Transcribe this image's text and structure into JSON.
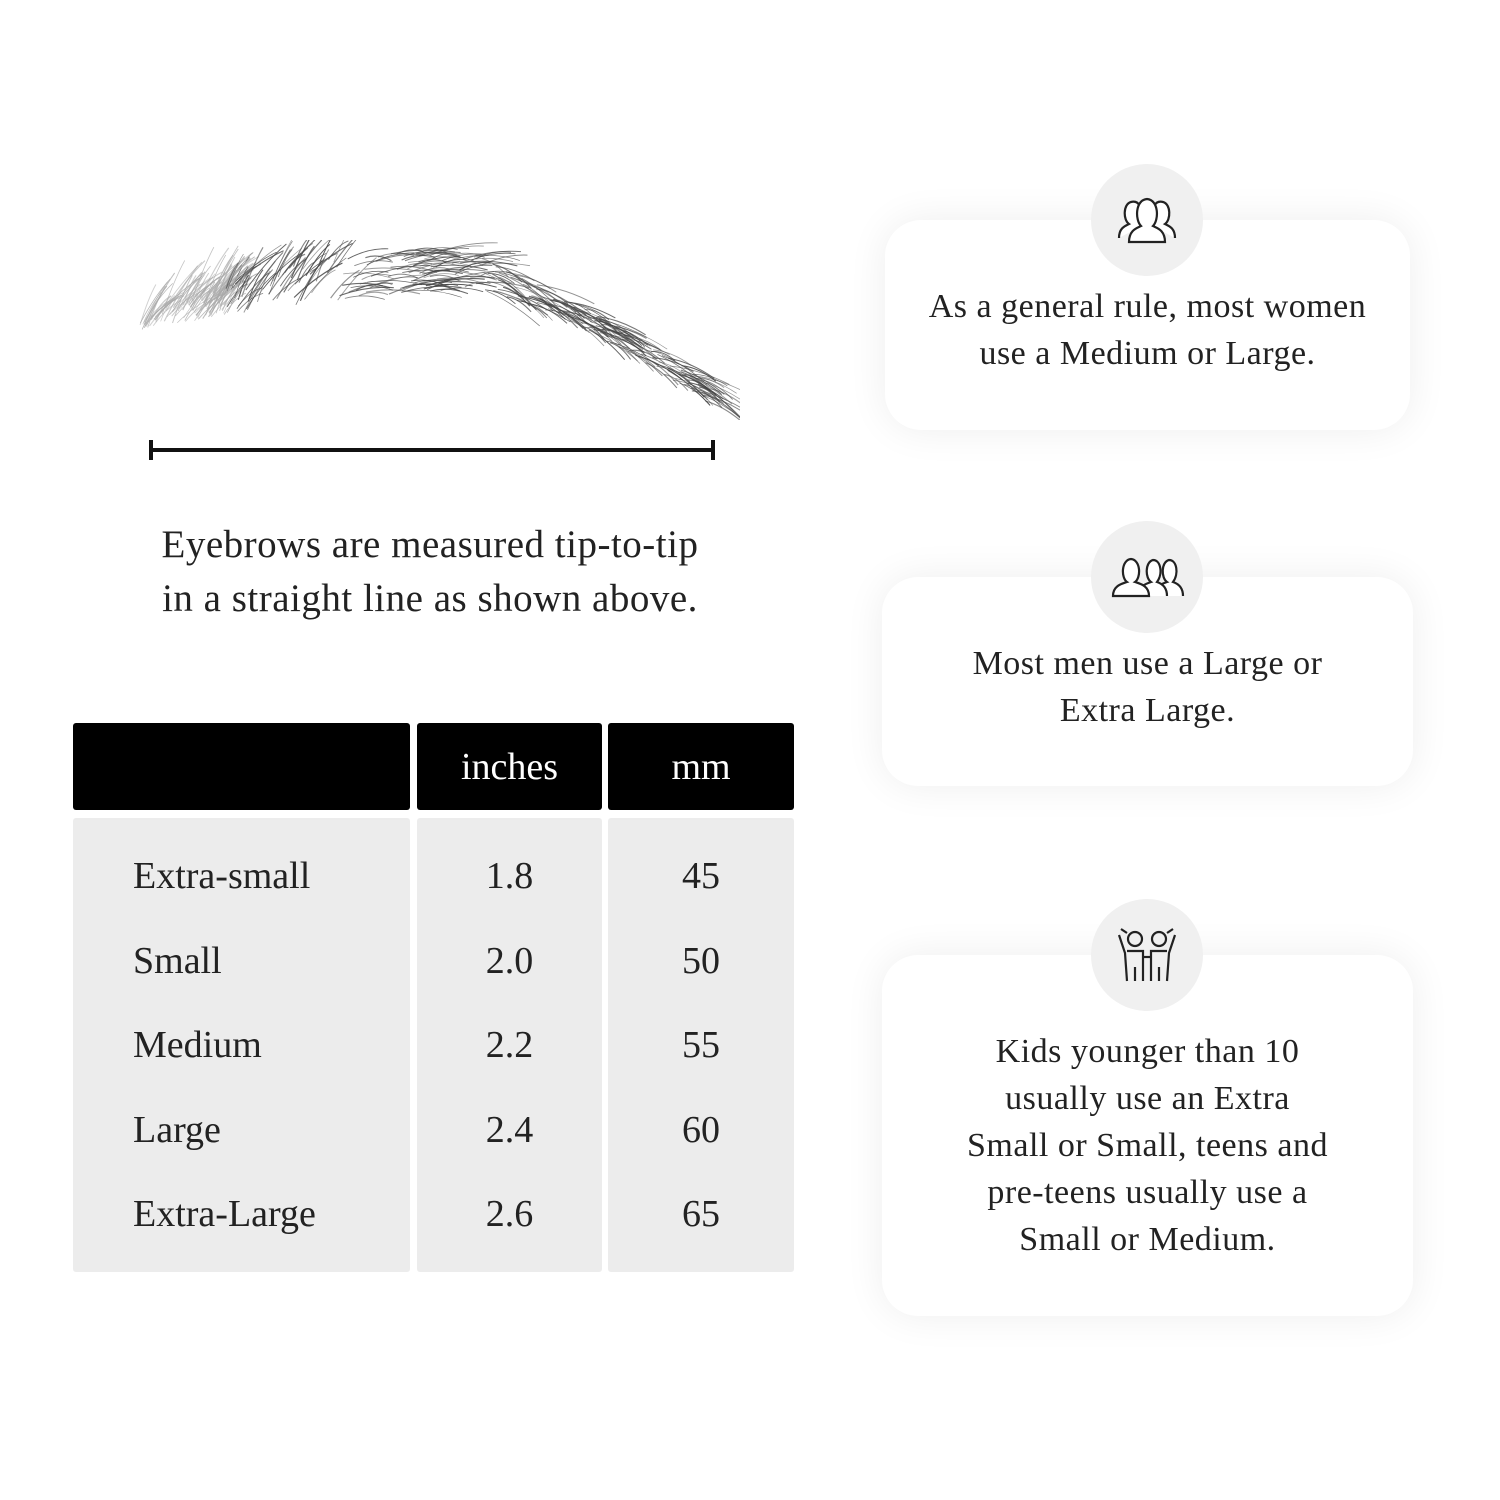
{
  "measure": {
    "caption_line1": "Eyebrows are measured tip-to-tip",
    "caption_line2": "in a straight line as shown above."
  },
  "table": {
    "headers": [
      "",
      "inches",
      "mm"
    ],
    "rows": [
      {
        "size": "Extra-small",
        "inches": "1.8",
        "mm": "45"
      },
      {
        "size": "Small",
        "inches": "2.0",
        "mm": "50"
      },
      {
        "size": "Medium",
        "inches": "2.2",
        "mm": "55"
      },
      {
        "size": "Large",
        "inches": "2.4",
        "mm": "60"
      },
      {
        "size": "Extra-Large",
        "inches": "2.6",
        "mm": "65"
      }
    ]
  },
  "cards": [
    {
      "icon": "women-group-icon",
      "line1": "As a general rule, most women",
      "line2": "use a Medium or Large."
    },
    {
      "icon": "men-group-icon",
      "line1": "Most men use a Large or",
      "line2": "Extra Large."
    },
    {
      "icon": "kids-icon",
      "lines": [
        "Kids younger than 10",
        "usually use an Extra",
        "Small or Small, teens and",
        "pre-teens usually use a",
        "Small or Medium."
      ]
    }
  ]
}
